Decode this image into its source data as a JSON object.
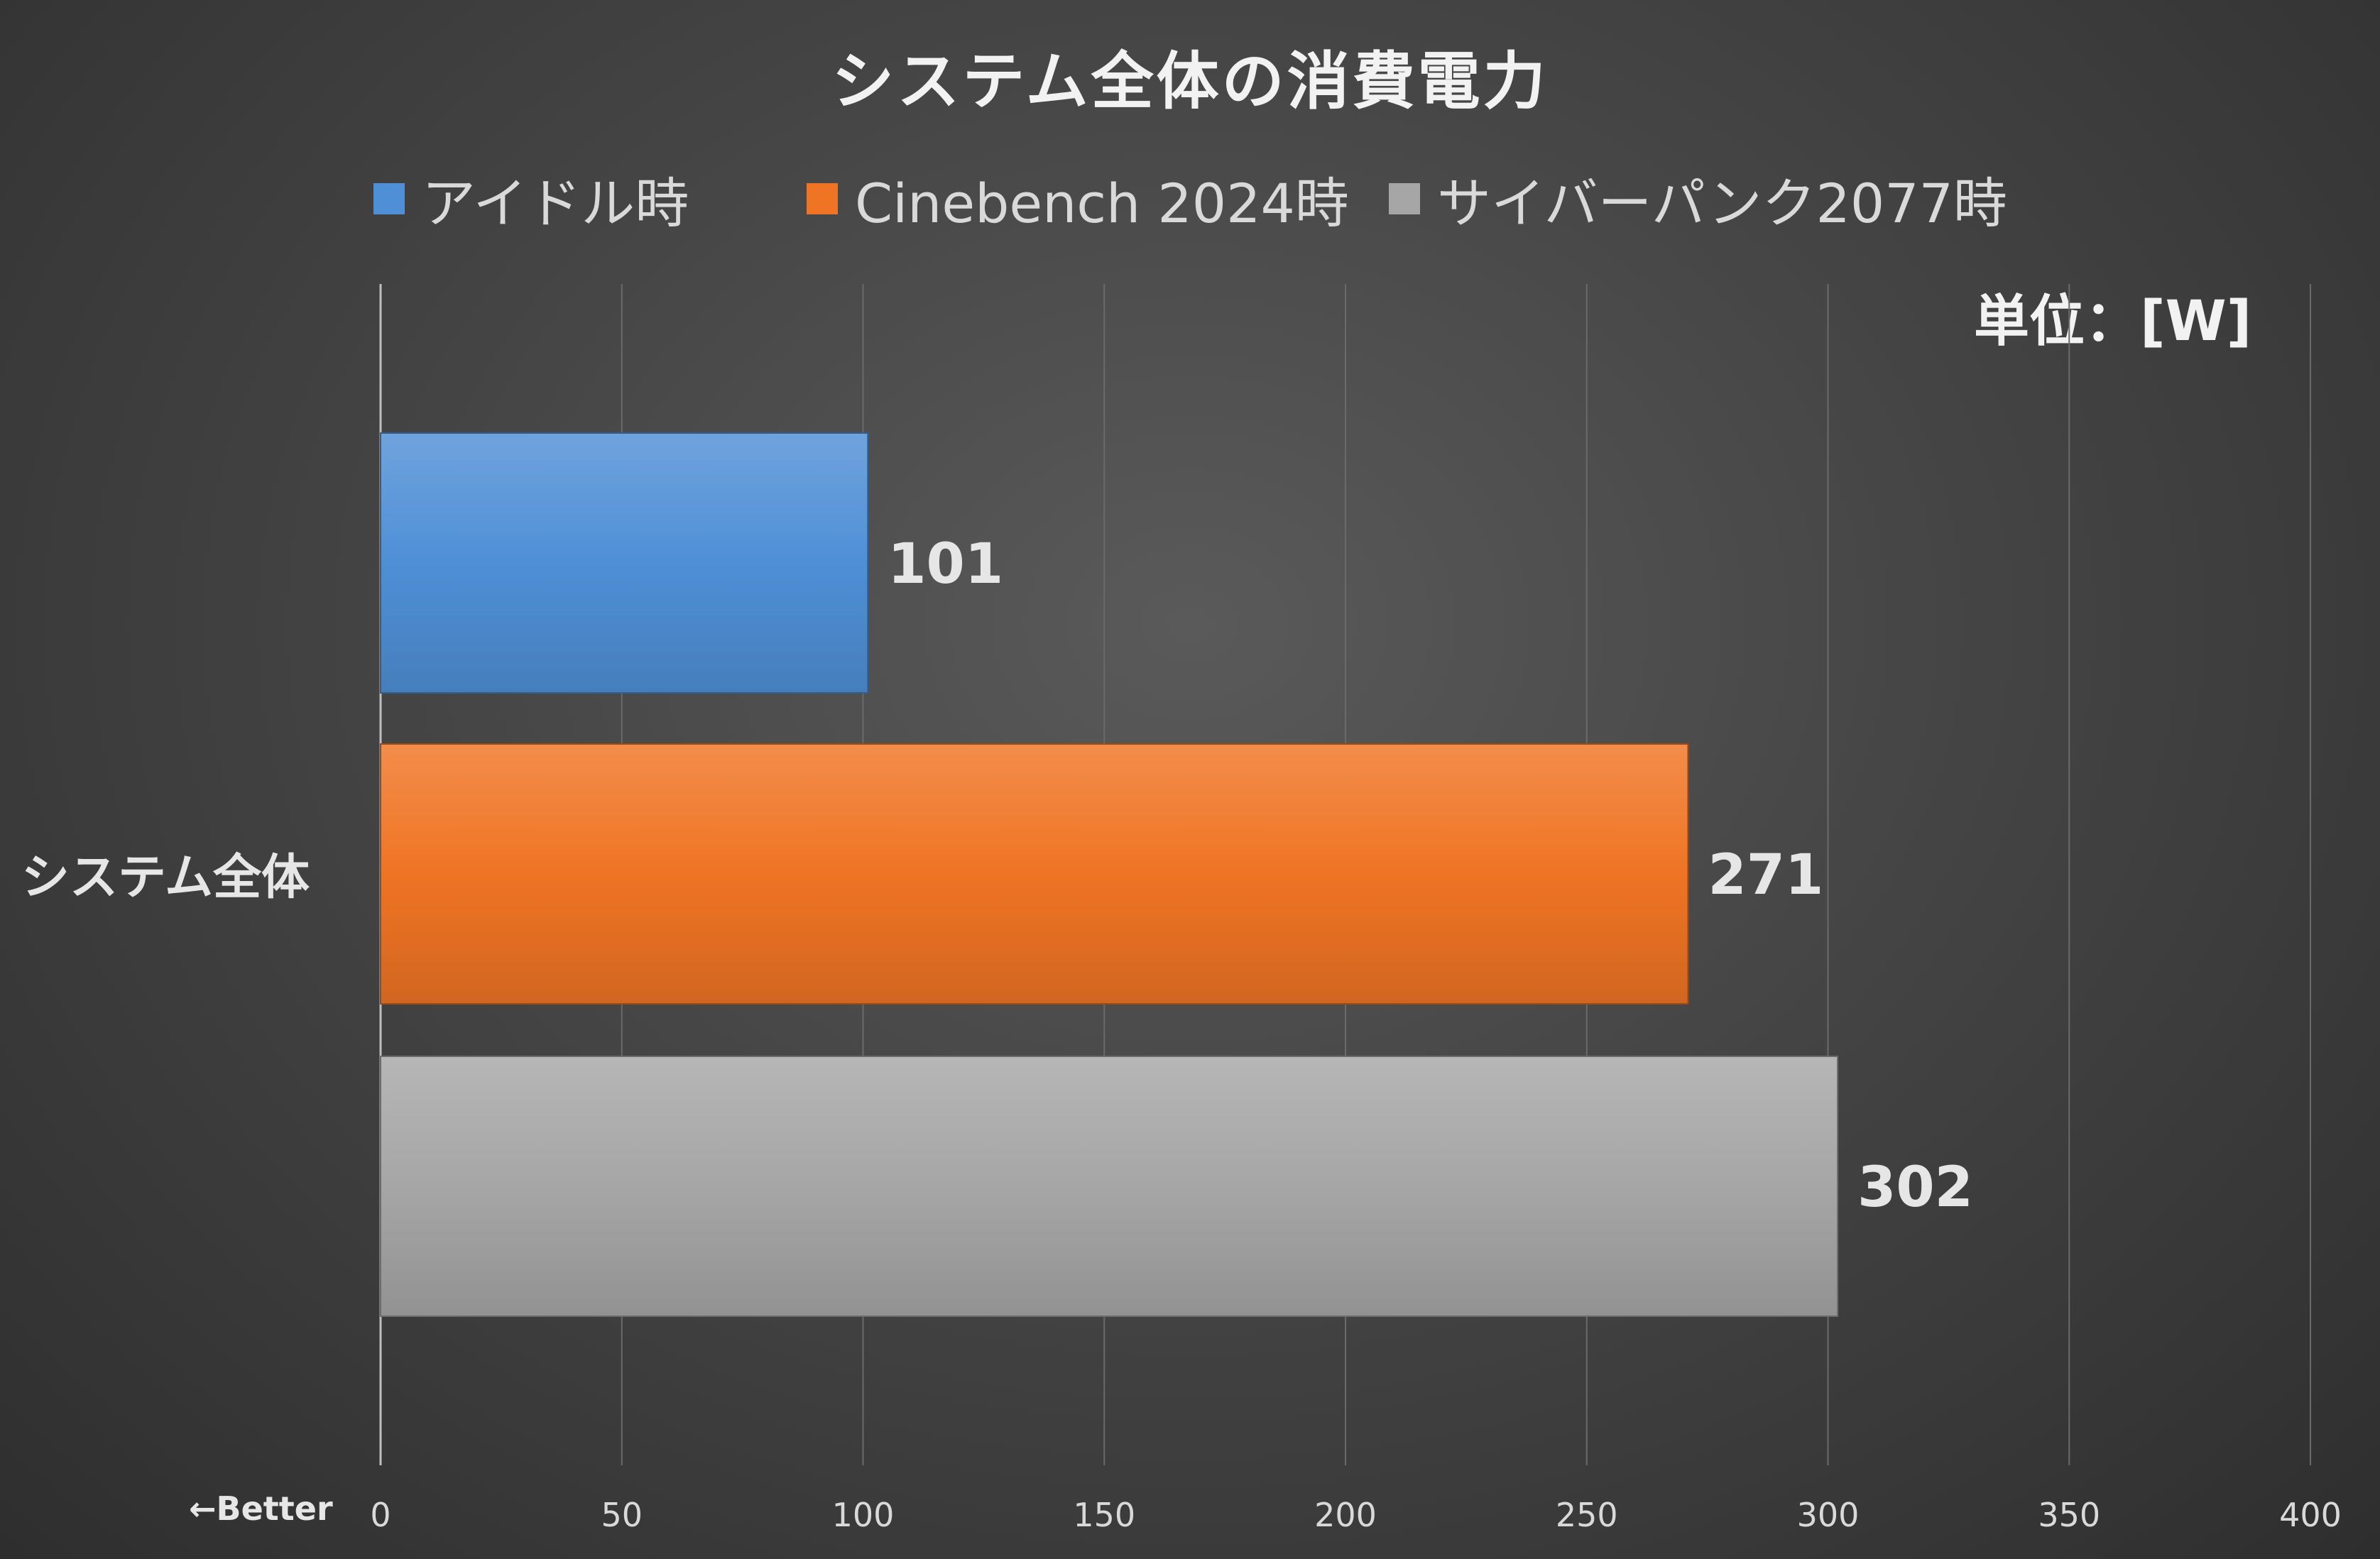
{
  "chart_data": {
    "type": "bar",
    "orientation": "horizontal",
    "title": "システム全体の消費電力",
    "unit_label": "単位：[W]",
    "better_label": "←Better",
    "categories": [
      "システム全体"
    ],
    "series": [
      {
        "name": "アイドル時",
        "values": [
          101
        ],
        "color": "#4f8fd6"
      },
      {
        "name": "Cinebench 2024時",
        "values": [
          271
        ],
        "color": "#ef7424"
      },
      {
        "name": "サイバーパンク2077時",
        "values": [
          302
        ],
        "color": "#a6a6a6"
      }
    ],
    "xlim": [
      0,
      400
    ],
    "xticks": [
      0,
      50,
      100,
      150,
      200,
      250,
      300,
      350,
      400
    ],
    "xtick_labels": [
      "0",
      "50",
      "100",
      "150",
      "200",
      "250",
      "300",
      "350",
      "400"
    ],
    "data_labels": [
      "101",
      "271",
      "302"
    ],
    "grid": true,
    "legend_position": "top"
  }
}
